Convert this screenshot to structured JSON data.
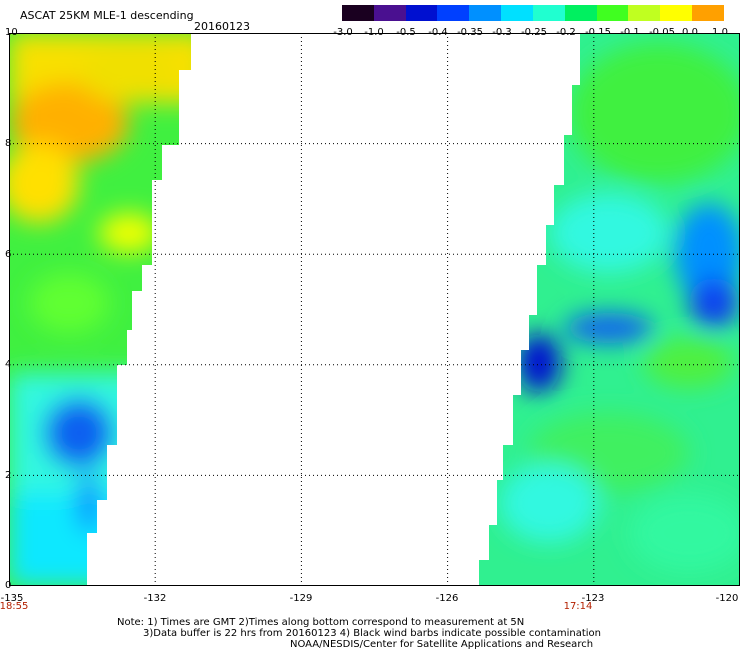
{
  "header": {
    "title": "ASCAT 25KM MLE-1 descending",
    "date": "20160123"
  },
  "colorbar": {
    "labels": [
      "-3.0",
      "-1.0",
      "-0.5",
      "-0.4",
      "-0.35",
      "-0.3",
      "-0.25",
      "-0.2",
      "-0.15",
      "-0.1",
      "-0.05",
      "0.0",
      "1.0"
    ],
    "colors": [
      "#1a0020",
      "#4a1090",
      "#0010d0",
      "#0040ff",
      "#0090ff",
      "#00e0ff",
      "#20ffd0",
      "#00f060",
      "#40ff20",
      "#c0ff20",
      "#ffff00",
      "#ffa000",
      "#ff2000"
    ]
  },
  "axes": {
    "y_labels": [
      "10",
      "8",
      "6",
      "4",
      "2",
      "0"
    ],
    "x_labels": [
      "-135",
      "-132",
      "-129",
      "-126",
      "-123",
      "-120"
    ]
  },
  "pass_times": {
    "left": "18:55",
    "right": "17:14"
  },
  "notes": {
    "line1": "Note: 1) Times are GMT 2)Times along bottom correspond to measurement at 5N",
    "line2": "3)Data buffer is 22 hrs from 20160123 4) Black wind barbs indicate possible contamination",
    "line3": "NOAA/NESDIS/Center for Satellite Applications and Research"
  }
}
